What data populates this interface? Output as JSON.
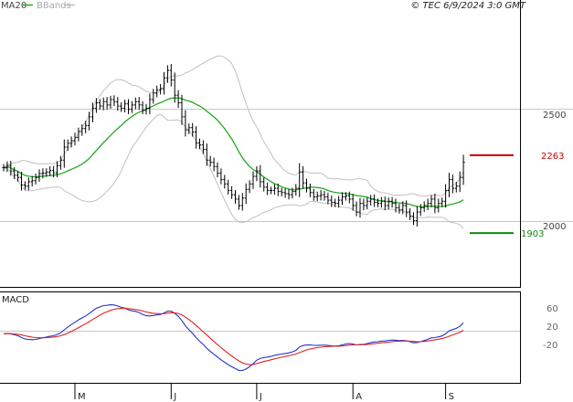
{
  "header": {
    "ma_label": "MA20",
    "bb_label": "BBands",
    "copyright": "© TEC 6/9/2024 3:0 GMT"
  },
  "colors": {
    "bars": "#000000",
    "ma": "#22aa22",
    "bands": "#c0c0c0",
    "macd_line": "#2233cc",
    "signal_line": "#dd2222",
    "resistance": "#cc0000",
    "support": "#118811",
    "grid": "#c8c8c8",
    "frame": "#000000"
  },
  "chart_data": [
    {
      "type": "ohlc",
      "title": "",
      "price_ticks": [
        "2500",
        "2000"
      ],
      "ylim": [
        1650,
        2980
      ],
      "x_ticks": [
        "M",
        "J",
        "J",
        "A",
        "S"
      ],
      "x_tick_index": [
        20,
        47,
        71,
        98,
        124
      ],
      "overlays": [
        {
          "name": "MA20",
          "kind": "moving_average"
        },
        {
          "name": "BBands",
          "kind": "bollinger_bands"
        }
      ],
      "levels": [
        {
          "label": "2263",
          "value": 2263,
          "role": "resistance"
        },
        {
          "label": "1903",
          "value": 1903,
          "role": "support"
        }
      ],
      "series": [
        {
          "name": "price",
          "close": [
            2205,
            2215,
            2190,
            2170,
            2160,
            2125,
            2120,
            2140,
            2145,
            2160,
            2178,
            2180,
            2185,
            2192,
            2182,
            2215,
            2240,
            2300,
            2318,
            2330,
            2345,
            2372,
            2386,
            2400,
            2440,
            2480,
            2505,
            2490,
            2510,
            2495,
            2520,
            2510,
            2490,
            2480,
            2500,
            2475,
            2495,
            2510,
            2495,
            2470,
            2480,
            2520,
            2550,
            2565,
            2570,
            2620,
            2655,
            2610,
            2540,
            2505,
            2440,
            2380,
            2390,
            2370,
            2320,
            2310,
            2290,
            2240,
            2230,
            2210,
            2180,
            2150,
            2130,
            2100,
            2080,
            2060,
            2030,
            2065,
            2105,
            2130,
            2165,
            2190,
            2140,
            2115,
            2100,
            2100,
            2110,
            2095,
            2090,
            2085,
            2080,
            2095,
            2110,
            2185,
            2135,
            2110,
            2090,
            2070,
            2075,
            2080,
            2070,
            2055,
            2045,
            2040,
            2055,
            2070,
            2075,
            2060,
            2030,
            2000,
            2040,
            2030,
            2050,
            2060,
            2045,
            2040,
            2050,
            2030,
            2050,
            2040,
            2020,
            2010,
            2030,
            2000,
            1980,
            1960,
            2000,
            2020,
            2030,
            2040,
            2060,
            2020,
            2040,
            2050,
            2100,
            2150,
            2110,
            2120,
            2160,
            2230
          ]
        }
      ]
    },
    {
      "type": "line",
      "title": "MACD",
      "y_ticks": [
        "60",
        "20",
        "-20"
      ],
      "ylim": [
        -143,
        118
      ],
      "series": [
        {
          "name": "MACD",
          "role": "macd_line"
        },
        {
          "name": "Signal",
          "role": "signal_line"
        }
      ]
    }
  ]
}
